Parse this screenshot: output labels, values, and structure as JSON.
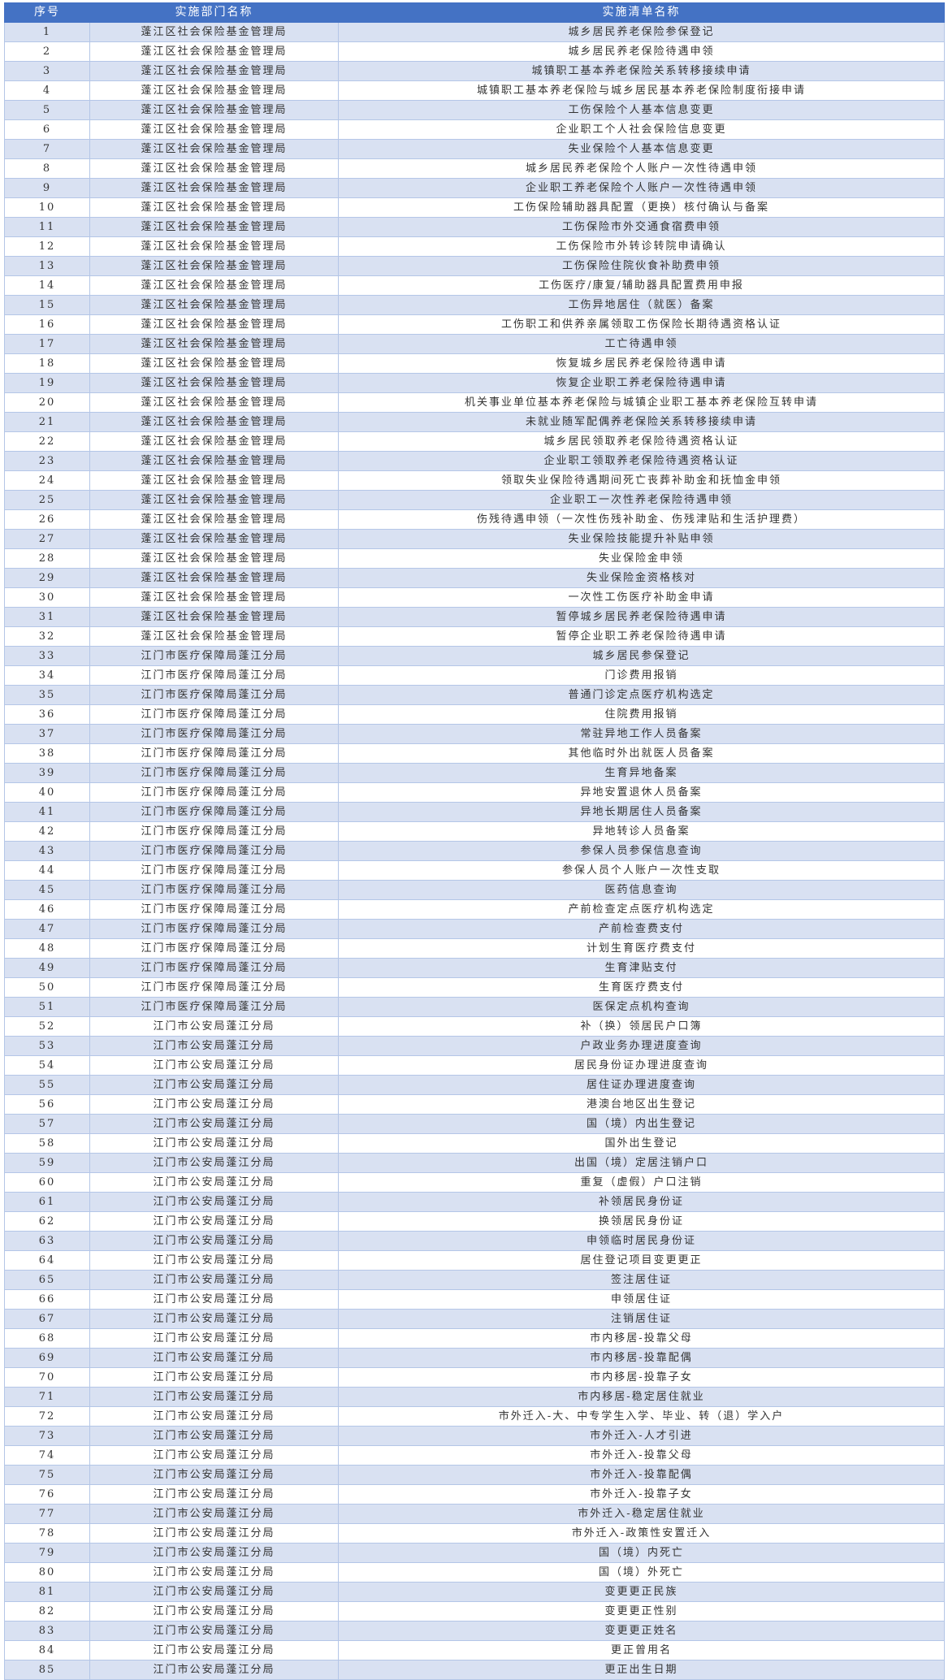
{
  "colors": {
    "header_bg": "#4472c4",
    "odd_row_bg": "#d9e1f2",
    "even_row_bg": "#ffffff",
    "border": "#b4c6e7"
  },
  "table": {
    "headers": [
      "序号",
      "实施部门名称",
      "实施清单名称"
    ],
    "departments": [
      "蓬江区社会保险基金管理局",
      "江门市医疗保障局蓬江分局",
      "江门市公安局蓬江分局"
    ],
    "rows": [
      [
        "1",
        "蓬江区社会保险基金管理局",
        "城乡居民养老保险参保登记"
      ],
      [
        "2",
        "蓬江区社会保险基金管理局",
        "城乡居民养老保险待遇申领"
      ],
      [
        "3",
        "蓬江区社会保险基金管理局",
        "城镇职工基本养老保险关系转移接续申请"
      ],
      [
        "4",
        "蓬江区社会保险基金管理局",
        "城镇职工基本养老保险与城乡居民基本养老保险制度衔接申请"
      ],
      [
        "5",
        "蓬江区社会保险基金管理局",
        "工伤保险个人基本信息变更"
      ],
      [
        "6",
        "蓬江区社会保险基金管理局",
        "企业职工个人社会保险信息变更"
      ],
      [
        "7",
        "蓬江区社会保险基金管理局",
        "失业保险个人基本信息变更"
      ],
      [
        "8",
        "蓬江区社会保险基金管理局",
        "城乡居民养老保险个人账户一次性待遇申领"
      ],
      [
        "9",
        "蓬江区社会保险基金管理局",
        "企业职工养老保险个人账户一次性待遇申领"
      ],
      [
        "10",
        "蓬江区社会保险基金管理局",
        "工伤保险辅助器具配置（更换）核付确认与备案"
      ],
      [
        "11",
        "蓬江区社会保险基金管理局",
        "工伤保险市外交通食宿费申领"
      ],
      [
        "12",
        "蓬江区社会保险基金管理局",
        "工伤保险市外转诊转院申请确认"
      ],
      [
        "13",
        "蓬江区社会保险基金管理局",
        "工伤保险住院伙食补助费申领"
      ],
      [
        "14",
        "蓬江区社会保险基金管理局",
        "工伤医疗/康复/辅助器具配置费用申报"
      ],
      [
        "15",
        "蓬江区社会保险基金管理局",
        "工伤异地居住（就医）备案"
      ],
      [
        "16",
        "蓬江区社会保险基金管理局",
        "工伤职工和供养亲属领取工伤保险长期待遇资格认证"
      ],
      [
        "17",
        "蓬江区社会保险基金管理局",
        "工亡待遇申领"
      ],
      [
        "18",
        "蓬江区社会保险基金管理局",
        "恢复城乡居民养老保险待遇申请"
      ],
      [
        "19",
        "蓬江区社会保险基金管理局",
        "恢复企业职工养老保险待遇申请"
      ],
      [
        "20",
        "蓬江区社会保险基金管理局",
        "机关事业单位基本养老保险与城镇企业职工基本养老保险互转申请"
      ],
      [
        "21",
        "蓬江区社会保险基金管理局",
        "未就业随军配偶养老保险关系转移接续申请"
      ],
      [
        "22",
        "蓬江区社会保险基金管理局",
        "城乡居民领取养老保险待遇资格认证"
      ],
      [
        "23",
        "蓬江区社会保险基金管理局",
        "企业职工领取养老保险待遇资格认证"
      ],
      [
        "24",
        "蓬江区社会保险基金管理局",
        "领取失业保险待遇期间死亡丧葬补助金和抚恤金申领"
      ],
      [
        "25",
        "蓬江区社会保险基金管理局",
        "企业职工一次性养老保险待遇申领"
      ],
      [
        "26",
        "蓬江区社会保险基金管理局",
        "伤残待遇申领（一次性伤残补助金、伤残津贴和生活护理费）"
      ],
      [
        "27",
        "蓬江区社会保险基金管理局",
        "失业保险技能提升补贴申领"
      ],
      [
        "28",
        "蓬江区社会保险基金管理局",
        "失业保险金申领"
      ],
      [
        "29",
        "蓬江区社会保险基金管理局",
        "失业保险金资格核对"
      ],
      [
        "30",
        "蓬江区社会保险基金管理局",
        "一次性工伤医疗补助金申请"
      ],
      [
        "31",
        "蓬江区社会保险基金管理局",
        "暂停城乡居民养老保险待遇申请"
      ],
      [
        "32",
        "蓬江区社会保险基金管理局",
        "暂停企业职工养老保险待遇申请"
      ],
      [
        "33",
        "江门市医疗保障局蓬江分局",
        "城乡居民参保登记"
      ],
      [
        "34",
        "江门市医疗保障局蓬江分局",
        "门诊费用报销"
      ],
      [
        "35",
        "江门市医疗保障局蓬江分局",
        "普通门诊定点医疗机构选定"
      ],
      [
        "36",
        "江门市医疗保障局蓬江分局",
        "住院费用报销"
      ],
      [
        "37",
        "江门市医疗保障局蓬江分局",
        "常驻异地工作人员备案"
      ],
      [
        "38",
        "江门市医疗保障局蓬江分局",
        "其他临时外出就医人员备案"
      ],
      [
        "39",
        "江门市医疗保障局蓬江分局",
        "生育异地备案"
      ],
      [
        "40",
        "江门市医疗保障局蓬江分局",
        "异地安置退休人员备案"
      ],
      [
        "41",
        "江门市医疗保障局蓬江分局",
        "异地长期居住人员备案"
      ],
      [
        "42",
        "江门市医疗保障局蓬江分局",
        "异地转诊人员备案"
      ],
      [
        "43",
        "江门市医疗保障局蓬江分局",
        "参保人员参保信息查询"
      ],
      [
        "44",
        "江门市医疗保障局蓬江分局",
        "参保人员个人账户一次性支取"
      ],
      [
        "45",
        "江门市医疗保障局蓬江分局",
        "医药信息查询"
      ],
      [
        "46",
        "江门市医疗保障局蓬江分局",
        "产前检查定点医疗机构选定"
      ],
      [
        "47",
        "江门市医疗保障局蓬江分局",
        "产前检查费支付"
      ],
      [
        "48",
        "江门市医疗保障局蓬江分局",
        "计划生育医疗费支付"
      ],
      [
        "49",
        "江门市医疗保障局蓬江分局",
        "生育津贴支付"
      ],
      [
        "50",
        "江门市医疗保障局蓬江分局",
        "生育医疗费支付"
      ],
      [
        "51",
        "江门市医疗保障局蓬江分局",
        "医保定点机构查询"
      ],
      [
        "52",
        "江门市公安局蓬江分局",
        "补（换）领居民户口簿"
      ],
      [
        "53",
        "江门市公安局蓬江分局",
        "户政业务办理进度查询"
      ],
      [
        "54",
        "江门市公安局蓬江分局",
        "居民身份证办理进度查询"
      ],
      [
        "55",
        "江门市公安局蓬江分局",
        "居住证办理进度查询"
      ],
      [
        "56",
        "江门市公安局蓬江分局",
        "港澳台地区出生登记"
      ],
      [
        "57",
        "江门市公安局蓬江分局",
        "国（境）内出生登记"
      ],
      [
        "58",
        "江门市公安局蓬江分局",
        "国外出生登记"
      ],
      [
        "59",
        "江门市公安局蓬江分局",
        "出国（境）定居注销户口"
      ],
      [
        "60",
        "江门市公安局蓬江分局",
        "重复（虚假）户口注销"
      ],
      [
        "61",
        "江门市公安局蓬江分局",
        "补领居民身份证"
      ],
      [
        "62",
        "江门市公安局蓬江分局",
        "换领居民身份证"
      ],
      [
        "63",
        "江门市公安局蓬江分局",
        "申领临时居民身份证"
      ],
      [
        "64",
        "江门市公安局蓬江分局",
        "居住登记项目变更更正"
      ],
      [
        "65",
        "江门市公安局蓬江分局",
        "签注居住证"
      ],
      [
        "66",
        "江门市公安局蓬江分局",
        "申领居住证"
      ],
      [
        "67",
        "江门市公安局蓬江分局",
        "注销居住证"
      ],
      [
        "68",
        "江门市公安局蓬江分局",
        "市内移居-投靠父母"
      ],
      [
        "69",
        "江门市公安局蓬江分局",
        "市内移居-投靠配偶"
      ],
      [
        "70",
        "江门市公安局蓬江分局",
        "市内移居-投靠子女"
      ],
      [
        "71",
        "江门市公安局蓬江分局",
        "市内移居-稳定居住就业"
      ],
      [
        "72",
        "江门市公安局蓬江分局",
        "市外迁入-大、中专学生入学、毕业、转（退）学入户"
      ],
      [
        "73",
        "江门市公安局蓬江分局",
        "市外迁入-人才引进"
      ],
      [
        "74",
        "江门市公安局蓬江分局",
        "市外迁入-投靠父母"
      ],
      [
        "75",
        "江门市公安局蓬江分局",
        "市外迁入-投靠配偶"
      ],
      [
        "76",
        "江门市公安局蓬江分局",
        "市外迁入-投靠子女"
      ],
      [
        "77",
        "江门市公安局蓬江分局",
        "市外迁入-稳定居住就业"
      ],
      [
        "78",
        "江门市公安局蓬江分局",
        "市外迁入-政策性安置迁入"
      ],
      [
        "79",
        "江门市公安局蓬江分局",
        "国（境）内死亡"
      ],
      [
        "80",
        "江门市公安局蓬江分局",
        "国（境）外死亡"
      ],
      [
        "81",
        "江门市公安局蓬江分局",
        "变更更正民族"
      ],
      [
        "82",
        "江门市公安局蓬江分局",
        "变更更正性别"
      ],
      [
        "83",
        "江门市公安局蓬江分局",
        "变更更正姓名"
      ],
      [
        "84",
        "江门市公安局蓬江分局",
        "更正曾用名"
      ],
      [
        "85",
        "江门市公安局蓬江分局",
        "更正出生日期"
      ]
    ]
  }
}
